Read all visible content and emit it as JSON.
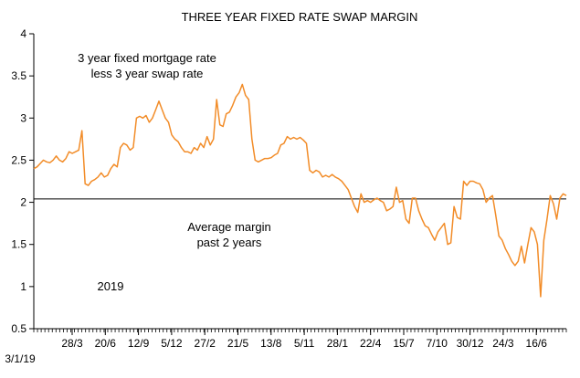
{
  "chart_data": {
    "type": "line",
    "title": "THREE YEAR FIXED RATE SWAP MARGIN",
    "xlabel": "",
    "ylabel": "",
    "ylim": [
      0.5,
      4
    ],
    "yticks": [
      "0.5",
      "1",
      "1.5",
      "2",
      "2.5",
      "3",
      "3.5",
      "4"
    ],
    "x_start_label": "3/1/19",
    "xtick_labels": [
      "28/3",
      "20/6",
      "12/9",
      "5/12",
      "27/2",
      "21/5",
      "13/8",
      "5/11",
      "28/1",
      "22/4",
      "15/7",
      "7/10",
      "30/12",
      "24/3",
      "16/6"
    ],
    "grid": false,
    "annotations": {
      "series_note_line1": "3 year fixed mortgage rate",
      "series_note_line2": "less 3 year swap rate",
      "average_note_line1": "Average margin",
      "average_note_line2": "past 2 years",
      "year_label": "2019"
    },
    "reference_line": {
      "value": 2.04
    },
    "colors": {
      "series": "#F28C28",
      "reference": "#000000",
      "axis": "#000000"
    },
    "series": [
      {
        "values": [
          2.4,
          2.42,
          2.46,
          2.5,
          2.48,
          2.47,
          2.5,
          2.55,
          2.5,
          2.48,
          2.52,
          2.6,
          2.58,
          2.6,
          2.62,
          2.85,
          2.22,
          2.2,
          2.25,
          2.27,
          2.3,
          2.35,
          2.3,
          2.32,
          2.4,
          2.45,
          2.42,
          2.65,
          2.7,
          2.68,
          2.62,
          2.65,
          3.0,
          3.02,
          3.0,
          3.03,
          2.95,
          3.0,
          3.1,
          3.2,
          3.1,
          3.0,
          2.95,
          2.8,
          2.75,
          2.72,
          2.65,
          2.6,
          2.6,
          2.58,
          2.65,
          2.62,
          2.7,
          2.65,
          2.78,
          2.68,
          2.75,
          3.22,
          2.92,
          2.9,
          3.05,
          3.07,
          3.15,
          3.25,
          3.3,
          3.4,
          3.27,
          3.22,
          2.75,
          2.5,
          2.48,
          2.5,
          2.52,
          2.52,
          2.53,
          2.56,
          2.58,
          2.68,
          2.7,
          2.78,
          2.75,
          2.77,
          2.75,
          2.77,
          2.74,
          2.7,
          2.38,
          2.35,
          2.38,
          2.36,
          2.3,
          2.32,
          2.3,
          2.33,
          2.3,
          2.28,
          2.25,
          2.2,
          2.15,
          2.05,
          1.95,
          1.88,
          2.1,
          2.0,
          2.02,
          2.0,
          2.03,
          2.05,
          2.02,
          2.0,
          1.9,
          1.92,
          1.95,
          2.18,
          2.0,
          2.02,
          1.8,
          1.75,
          2.05,
          2.05,
          1.9,
          1.8,
          1.72,
          1.7,
          1.62,
          1.55,
          1.65,
          1.7,
          1.75,
          1.5,
          1.52,
          1.95,
          1.82,
          1.8,
          2.25,
          2.2,
          2.25,
          2.25,
          2.23,
          2.22,
          2.15,
          2.0,
          2.05,
          2.08,
          1.85,
          1.6,
          1.55,
          1.45,
          1.38,
          1.3,
          1.25,
          1.3,
          1.48,
          1.28,
          1.5,
          1.7,
          1.65,
          1.5,
          0.88,
          1.55,
          1.8,
          2.08,
          1.98,
          1.8,
          2.05,
          2.1,
          2.08
        ]
      }
    ]
  }
}
